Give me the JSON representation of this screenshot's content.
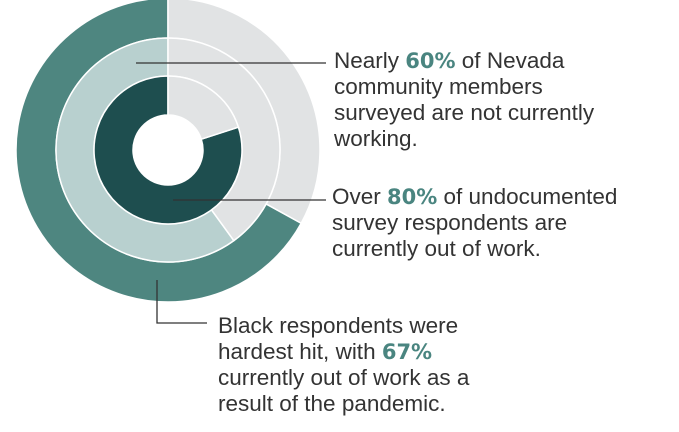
{
  "chart_data": {
    "type": "pie",
    "rings": [
      {
        "name": "",
        "value": 67,
        "color": "#4e8680",
        "remainder_color": "#e1e3e4"
      },
      {
        "name": "",
        "value": 60,
        "color": "#b8d0cf",
        "remainder_color": "#e1e3e4"
      },
      {
        "name": "",
        "value": 80,
        "color": "#1e4e4f",
        "remainder_color": "#e1e3e4"
      }
    ],
    "annotations": [
      {
        "pre": "Nearly ",
        "pct": "60%",
        "post1": " of Nevada",
        "line2": "community members",
        "line3": "surveyed are not currently",
        "line4": "working."
      },
      {
        "pre": "Over ",
        "pct": "80%",
        "post1": " of undocumented",
        "line2": "survey respondents are",
        "line3": "currently out of work."
      },
      {
        "line1": "Black respondents were",
        "pre": "hardest hit, with ",
        "pct": "67%",
        "line3": "currently out of work as a",
        "line4": "result of the pandemic."
      }
    ]
  }
}
